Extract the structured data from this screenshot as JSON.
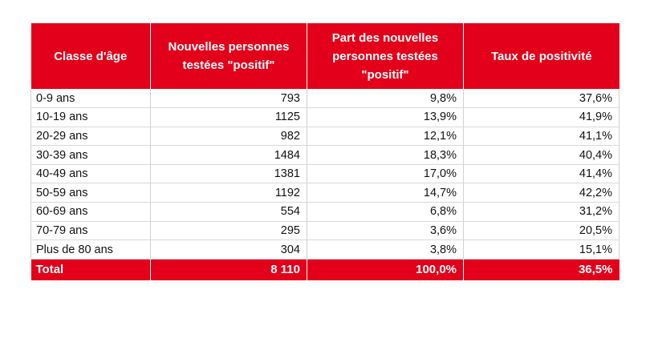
{
  "table": {
    "headers": [
      "Classe d'âge",
      "Nouvelles personnes testées \"positif\"",
      "Part des nouvelles personnes testées \"positif\"",
      "Taux de positivité"
    ],
    "rows": [
      {
        "age": "0-9 ans",
        "new_positive": "793",
        "share": "9,8%",
        "rate": "37,6%"
      },
      {
        "age": "10-19 ans",
        "new_positive": "1125",
        "share": "13,9%",
        "rate": "41,9%"
      },
      {
        "age": "20-29 ans",
        "new_positive": "982",
        "share": "12,1%",
        "rate": "41,1%"
      },
      {
        "age": "30-39 ans",
        "new_positive": "1484",
        "share": "18,3%",
        "rate": "40,4%"
      },
      {
        "age": "40-49 ans",
        "new_positive": "1381",
        "share": "17,0%",
        "rate": "41,4%"
      },
      {
        "age": "50-59 ans",
        "new_positive": "1192",
        "share": "14,7%",
        "rate": "42,2%"
      },
      {
        "age": "60-69 ans",
        "new_positive": "554",
        "share": "6,8%",
        "rate": "31,2%"
      },
      {
        "age": "70-79 ans",
        "new_positive": "295",
        "share": "3,6%",
        "rate": "20,5%"
      },
      {
        "age": "Plus de 80 ans",
        "new_positive": "304",
        "share": "3,8%",
        "rate": "15,1%"
      }
    ],
    "total": {
      "label": "Total",
      "new_positive": "8 110",
      "share": "100,0%",
      "rate": "36,5%"
    }
  },
  "colors": {
    "header_bg": "#e2001a",
    "header_text": "#ffffff"
  }
}
